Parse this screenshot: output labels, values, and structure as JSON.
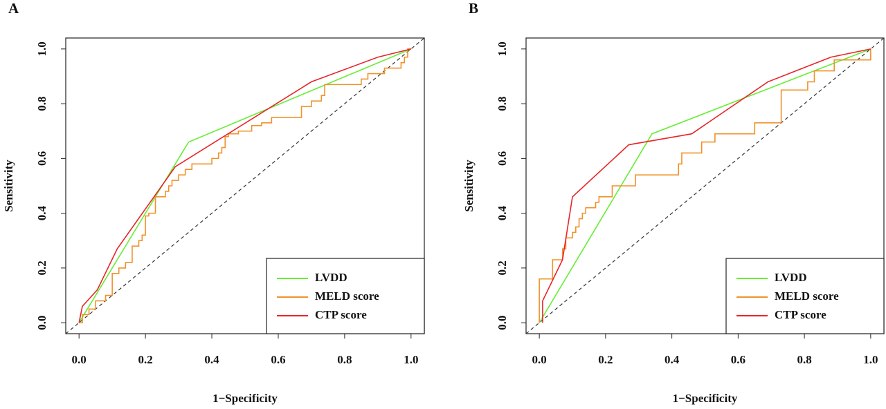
{
  "chart_data": [
    {
      "type": "line",
      "panel_label": "A",
      "xlabel": "1−Specificity",
      "ylabel": "Sensitivity",
      "xlim": [
        -0.04,
        1.04
      ],
      "ylim": [
        -0.04,
        1.04
      ],
      "xticks": [
        {
          "value": 0,
          "label": "0.0"
        },
        0.2,
        0.4,
        0.6,
        0.8,
        {
          "value": 1,
          "label": "1.0"
        }
      ],
      "yticks": [
        {
          "value": 0,
          "label": "0.0"
        },
        0.2,
        0.4,
        0.6,
        0.8,
        {
          "value": 1,
          "label": "1.0"
        }
      ],
      "diagonal": true,
      "legend": "bottom-right",
      "series": [
        {
          "name": "LVDD",
          "color": "#66ee33",
          "x": [
            0,
            0.01,
            0.33,
            1
          ],
          "values": [
            0,
            0.02,
            0.66,
            1
          ]
        },
        {
          "name": "MELD score",
          "color": "#f0922a",
          "x": [
            0,
            0.01,
            0.01,
            0.03,
            0.03,
            0.05,
            0.05,
            0.08,
            0.08,
            0.1,
            0.1,
            0.12,
            0.12,
            0.14,
            0.14,
            0.16,
            0.16,
            0.18,
            0.18,
            0.19,
            0.19,
            0.2,
            0.2,
            0.21,
            0.21,
            0.23,
            0.23,
            0.26,
            0.26,
            0.27,
            0.27,
            0.28,
            0.28,
            0.3,
            0.3,
            0.32,
            0.32,
            0.34,
            0.34,
            0.4,
            0.4,
            0.42,
            0.42,
            0.43,
            0.43,
            0.44,
            0.44,
            0.45,
            0.45,
            0.48,
            0.48,
            0.52,
            0.52,
            0.55,
            0.55,
            0.58,
            0.58,
            0.67,
            0.67,
            0.7,
            0.7,
            0.73,
            0.73,
            0.74,
            0.74,
            0.85,
            0.85,
            0.87,
            0.87,
            0.92,
            0.92,
            0.97,
            0.97,
            0.98,
            0.98,
            0.99,
            0.99,
            1
          ],
          "values": [
            0,
            0,
            0.03,
            0.03,
            0.05,
            0.05,
            0.08,
            0.08,
            0.1,
            0.1,
            0.18,
            0.18,
            0.2,
            0.2,
            0.22,
            0.22,
            0.28,
            0.28,
            0.3,
            0.3,
            0.32,
            0.32,
            0.39,
            0.39,
            0.4,
            0.4,
            0.46,
            0.46,
            0.48,
            0.48,
            0.5,
            0.5,
            0.52,
            0.52,
            0.54,
            0.54,
            0.56,
            0.56,
            0.58,
            0.58,
            0.6,
            0.6,
            0.62,
            0.62,
            0.64,
            0.64,
            0.68,
            0.68,
            0.69,
            0.69,
            0.7,
            0.7,
            0.72,
            0.72,
            0.73,
            0.73,
            0.75,
            0.75,
            0.79,
            0.79,
            0.81,
            0.81,
            0.83,
            0.83,
            0.87,
            0.87,
            0.89,
            0.89,
            0.91,
            0.91,
            0.93,
            0.93,
            0.95,
            0.95,
            0.97,
            0.97,
            1,
            1
          ]
        },
        {
          "name": "CTP score",
          "color": "#e8242a",
          "x": [
            0,
            0.01,
            0.055,
            0.115,
            0.29,
            0.7,
            0.9,
            1
          ],
          "values": [
            0,
            0.06,
            0.12,
            0.27,
            0.57,
            0.88,
            0.97,
            1
          ]
        }
      ]
    },
    {
      "type": "line",
      "panel_label": "B",
      "xlabel": "1−Specificity",
      "ylabel": "Sensitivity",
      "xlim": [
        -0.04,
        1.04
      ],
      "ylim": [
        -0.04,
        1.04
      ],
      "xticks": [
        {
          "value": 0,
          "label": "0.0"
        },
        0.2,
        0.4,
        0.6,
        0.8,
        {
          "value": 1,
          "label": "1.0"
        }
      ],
      "yticks": [
        {
          "value": 0,
          "label": "0.0"
        },
        0.2,
        0.4,
        0.6,
        0.8,
        {
          "value": 1,
          "label": "1.0"
        }
      ],
      "diagonal": true,
      "legend": "bottom-right",
      "series": [
        {
          "name": "LVDD",
          "color": "#66ee33",
          "x": [
            0,
            0.34,
            1
          ],
          "values": [
            0,
            0.69,
            1
          ]
        },
        {
          "name": "MELD score",
          "color": "#f0922a",
          "x": [
            0,
            0,
            0.04,
            0.04,
            0.07,
            0.07,
            0.08,
            0.08,
            0.1,
            0.1,
            0.11,
            0.11,
            0.12,
            0.12,
            0.13,
            0.13,
            0.14,
            0.14,
            0.17,
            0.17,
            0.18,
            0.18,
            0.22,
            0.22,
            0.29,
            0.29,
            0.42,
            0.42,
            0.43,
            0.43,
            0.49,
            0.49,
            0.53,
            0.53,
            0.65,
            0.65,
            0.73,
            0.73,
            0.81,
            0.81,
            0.83,
            0.83,
            0.89,
            0.89,
            1,
            1
          ],
          "values": [
            0,
            0.16,
            0.16,
            0.23,
            0.23,
            0.27,
            0.27,
            0.31,
            0.31,
            0.33,
            0.33,
            0.35,
            0.35,
            0.38,
            0.38,
            0.4,
            0.4,
            0.42,
            0.42,
            0.44,
            0.44,
            0.46,
            0.46,
            0.5,
            0.5,
            0.54,
            0.54,
            0.58,
            0.58,
            0.62,
            0.62,
            0.66,
            0.66,
            0.69,
            0.69,
            0.73,
            0.73,
            0.85,
            0.85,
            0.88,
            0.88,
            0.92,
            0.92,
            0.96,
            0.96,
            1
          ]
        },
        {
          "name": "CTP score",
          "color": "#e8242a",
          "x": [
            0.01,
            0.01,
            0.07,
            0.1,
            0.27,
            0.46,
            0.69,
            0.88,
            1
          ],
          "values": [
            0,
            0.08,
            0.23,
            0.46,
            0.65,
            0.69,
            0.88,
            0.97,
            1
          ]
        }
      ]
    }
  ]
}
